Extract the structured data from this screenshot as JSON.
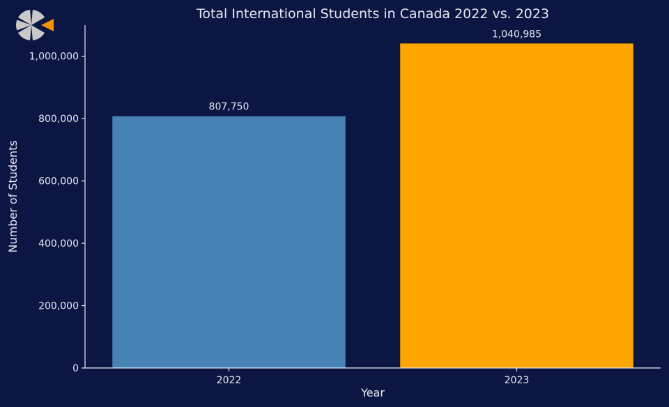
{
  "logo": {
    "icon": "segmented-circle-logo-icon",
    "colors": {
      "segments": "#c9c9c9",
      "accent": "#f29200"
    }
  },
  "colors": {
    "background": "#0c1642",
    "text": "#e6e9f2"
  },
  "chart_data": {
    "type": "bar",
    "title": "Total International Students in Canada 2022 vs. 2023",
    "xlabel": "Year",
    "ylabel": "Number of Students",
    "categories": [
      "2022",
      "2023"
    ],
    "values": [
      807750,
      1040985
    ],
    "value_labels": [
      "807,750",
      "1,040,985"
    ],
    "bar_colors": [
      "#4682b4",
      "#ffa500"
    ],
    "ylim": [
      0,
      1100000
    ],
    "yticks": [
      0,
      200000,
      400000,
      600000,
      800000,
      1000000
    ],
    "ytick_labels": [
      "0",
      "200,000",
      "400,000",
      "600,000",
      "800,000",
      "1,000,000"
    ],
    "grid": false,
    "legend": "none"
  }
}
